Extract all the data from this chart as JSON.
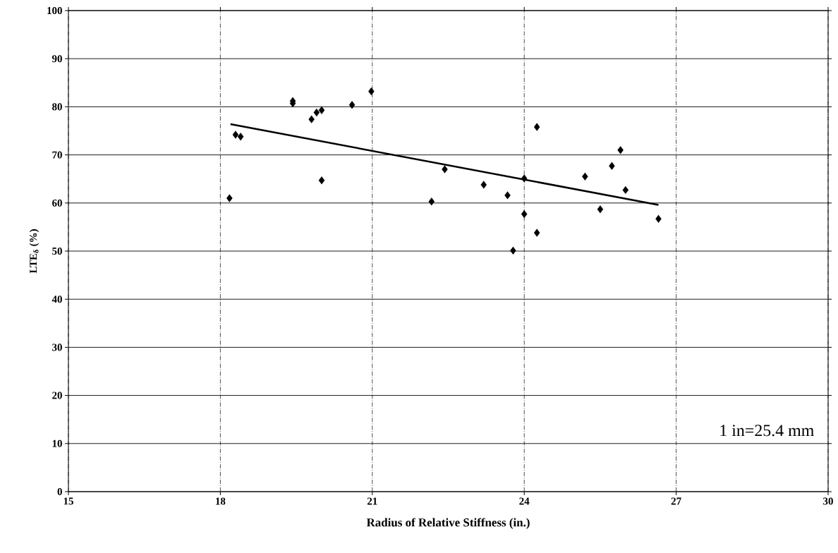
{
  "chart_data": {
    "type": "scatter",
    "xlabel": "Radius of Relative Stiffness (in.)",
    "ylabel": "LTE$_{δ}$ (%)",
    "annotations": [
      "1 in=25.4 mm"
    ],
    "xlim": [
      15,
      30
    ],
    "xticks": [
      15,
      18,
      21,
      24,
      27,
      30
    ],
    "ylim": [
      0,
      100
    ],
    "yticks": [
      0,
      10,
      20,
      30,
      40,
      50,
      60,
      70,
      80,
      90,
      100
    ],
    "grid": true,
    "marker": "diamond",
    "series": [
      {
        "color": "#000000",
        "x": [
          18.18,
          18.3,
          18.4,
          19.43,
          19.43,
          19.8,
          19.9,
          20.0,
          20.0,
          20.6,
          20.98,
          22.17,
          22.43,
          23.2,
          23.67,
          23.78,
          24.0,
          24.0,
          24.25,
          24.25,
          25.2,
          25.5,
          25.73,
          25.9,
          26.0,
          26.65
        ],
        "values": [
          61.0,
          74.2,
          73.8,
          81.2,
          80.7,
          77.4,
          78.8,
          79.3,
          64.7,
          80.4,
          83.2,
          60.3,
          67.0,
          63.8,
          61.6,
          50.1,
          65.1,
          57.7,
          53.8,
          75.8,
          65.5,
          58.7,
          67.7,
          71.0,
          62.7,
          56.7
        ]
      },
      {
        "type": "line",
        "color": "#000000",
        "marker": "none",
        "x": [
          18.2,
          26.65
        ],
        "values": [
          76.4,
          59.6
        ]
      }
    ]
  }
}
